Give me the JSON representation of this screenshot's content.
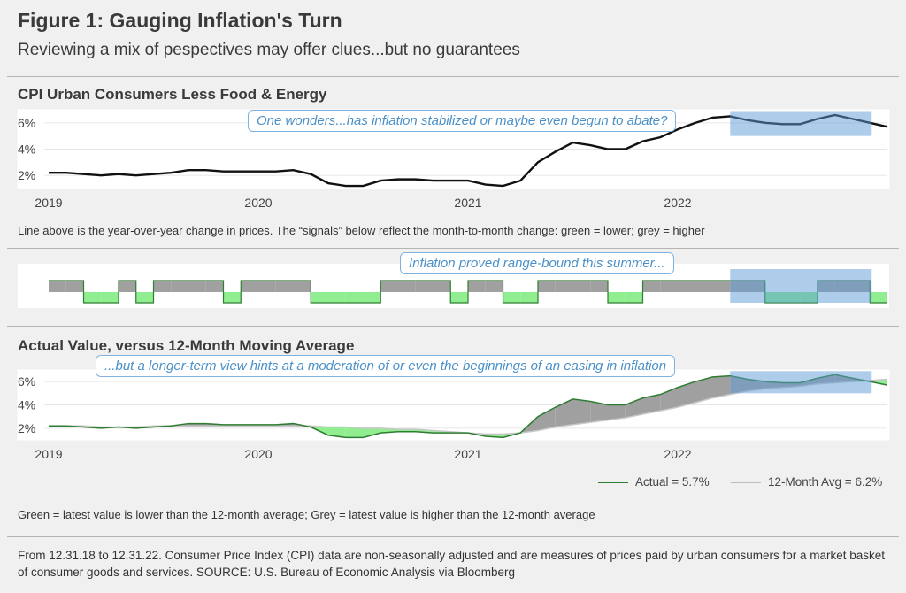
{
  "figure": {
    "title": "Figure 1: Gauging Inflation's Turn",
    "subtitle": "Reviewing a mix of pespectives may offer clues...but no guarantees"
  },
  "panel1": {
    "title": "CPI Urban Consumers Less Food & Energy",
    "callout": "One wonders...has inflation stabilized or maybe even begun to abate?",
    "note": "Line above is the year-over-year change in prices. The “signals” below reflect the month-to-month change: green = lower; grey = higher"
  },
  "panel2": {
    "callout": "Inflation proved range-bound this summer..."
  },
  "panel3": {
    "title": "Actual Value, versus 12-Month Moving Average",
    "callout": "...but a longer-term view hints at a moderation of or even the beginnings of an easing in inflation",
    "legend_actual": "Actual = 5.7%",
    "legend_avg": "12-Month Avg = 6.2%",
    "note": "Green = latest value is lower than the 12-month average; Grey = latest value is higher than the 12-month average"
  },
  "footer": "From 12.31.18 to 12.31.22. Consumer Price Index (CPI) data are non-seasonally adjusted and are measures of prices paid by urban consumers for a market basket of consumer goods and services. SOURCE: U.S. Bureau of Economic Analysis via Bloomberg",
  "colors": {
    "line": "#111111",
    "green": "#90ee90",
    "green_line": "#2e7d32",
    "grey": "#a0a0a0",
    "highlight": "#5b9bd5"
  },
  "chart_data": [
    {
      "type": "line",
      "title": "CPI Urban Consumers Less Food & Energy",
      "x_ticks": [
        "2019",
        "2020",
        "2021",
        "2022"
      ],
      "y_ticks": [
        "2%",
        "4%",
        "6%"
      ],
      "ylim": [
        1,
        7
      ],
      "x_start": "2019-01",
      "highlight_range": [
        "2022-04",
        "2022-12"
      ],
      "series": [
        {
          "values": [
            2.2,
            2.2,
            2.1,
            2.0,
            2.1,
            2.0,
            2.1,
            2.2,
            2.4,
            2.4,
            2.3,
            2.3,
            2.3,
            2.3,
            2.4,
            2.1,
            1.4,
            1.2,
            1.2,
            1.6,
            1.7,
            1.7,
            1.6,
            1.6,
            1.6,
            1.3,
            1.2,
            1.6,
            3.0,
            3.8,
            4.5,
            4.3,
            4.0,
            4.0,
            4.6,
            4.9,
            5.5,
            6.0,
            6.4,
            6.5,
            6.2,
            6.0,
            5.9,
            5.9,
            6.3,
            6.6,
            6.3,
            6.0,
            5.7
          ]
        }
      ]
    },
    {
      "type": "area",
      "title": "",
      "signal_values": [
        1,
        1,
        -1,
        -1,
        1,
        -1,
        1,
        1,
        1,
        1,
        -1,
        1,
        1,
        1,
        1,
        -1,
        -1,
        -1,
        -1,
        1,
        1,
        1,
        1,
        -1,
        1,
        1,
        -1,
        -1,
        1,
        1,
        1,
        1,
        -1,
        -1,
        1,
        1,
        1,
        1,
        1,
        1,
        1,
        -1,
        -1,
        -1,
        1,
        1,
        1,
        -1,
        -1
      ],
      "legend": "green = lower; grey = higher",
      "highlight_range": [
        "2022-04",
        "2022-12"
      ]
    },
    {
      "type": "area",
      "title": "Actual Value, versus 12-Month Moving Average",
      "x_ticks": [
        "2019",
        "2020",
        "2021",
        "2022"
      ],
      "y_ticks": [
        "2%",
        "4%",
        "6%"
      ],
      "ylim": [
        1,
        7
      ],
      "highlight_range": [
        "2022-04",
        "2022-12"
      ],
      "series": [
        {
          "name": "Actual = 5.7%",
          "values": [
            2.2,
            2.2,
            2.1,
            2.0,
            2.1,
            2.0,
            2.1,
            2.2,
            2.4,
            2.4,
            2.3,
            2.3,
            2.3,
            2.3,
            2.4,
            2.1,
            1.4,
            1.2,
            1.2,
            1.6,
            1.7,
            1.7,
            1.6,
            1.6,
            1.6,
            1.3,
            1.2,
            1.6,
            3.0,
            3.8,
            4.5,
            4.3,
            4.0,
            4.0,
            4.6,
            4.9,
            5.5,
            6.0,
            6.4,
            6.5,
            6.2,
            6.0,
            5.9,
            5.9,
            6.3,
            6.6,
            6.3,
            6.0,
            5.7
          ]
        },
        {
          "name": "12-Month Avg = 6.2%",
          "values": [
            2.2,
            2.2,
            2.2,
            2.1,
            2.1,
            2.1,
            2.2,
            2.2,
            2.2,
            2.2,
            2.2,
            2.2,
            2.2,
            2.2,
            2.2,
            2.2,
            2.1,
            2.1,
            2.0,
            2.0,
            1.9,
            1.9,
            1.8,
            1.7,
            1.6,
            1.5,
            1.5,
            1.6,
            1.8,
            2.1,
            2.3,
            2.5,
            2.7,
            2.9,
            3.2,
            3.5,
            3.8,
            4.2,
            4.6,
            4.9,
            5.2,
            5.4,
            5.5,
            5.6,
            5.8,
            5.9,
            6.0,
            6.1,
            6.2
          ]
        }
      ]
    }
  ]
}
